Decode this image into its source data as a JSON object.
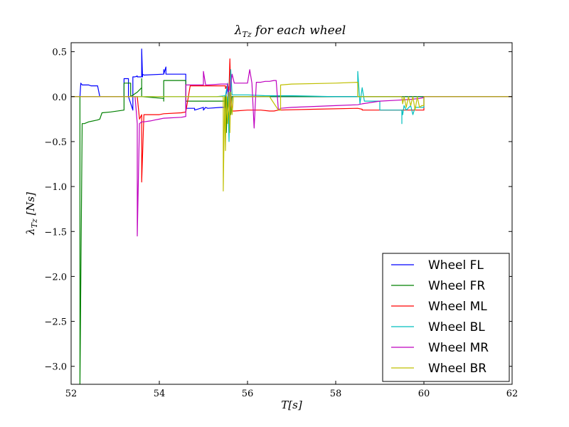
{
  "chart_data": {
    "type": "line",
    "title": "λ_Tz for each wheel",
    "xlabel": "T[s]",
    "ylabel": "λ_Tz [Ns]",
    "xlim": [
      52,
      62
    ],
    "ylim": [
      -3.2,
      0.6
    ],
    "xticks": [
      52,
      54,
      56,
      58,
      60,
      62
    ],
    "xtick_labels": [
      "52",
      "54",
      "56",
      "58",
      "60",
      "62"
    ],
    "yticks": [
      0.5,
      0.0,
      -0.5,
      -1.0,
      -1.5,
      -2.0,
      -2.5,
      -3.0
    ],
    "ytick_labels": [
      "0.5",
      "0.0",
      "−0.5",
      "−1.0",
      "−1.5",
      "−2.0",
      "−2.5",
      "−3.0"
    ],
    "grid": false,
    "legend_position": "lower-right",
    "series": [
      {
        "name": "Wheel FL",
        "color": "#0000ff",
        "x": [
          52.0,
          52.2,
          52.22,
          52.25,
          52.3,
          52.4,
          52.45,
          52.5,
          52.6,
          52.65,
          52.65,
          52.9,
          53.2,
          53.2,
          53.3,
          53.3,
          53.4,
          53.4,
          53.45,
          53.5,
          53.5,
          53.6,
          53.6,
          53.62,
          53.62,
          53.65,
          54.1,
          54.1,
          54.1,
          54.15,
          54.15,
          54.2,
          54.5,
          54.6,
          54.6,
          54.8,
          54.8,
          55.0,
          55.0,
          55.05,
          55.1,
          55.4,
          55.48,
          55.5,
          55.5,
          55.55,
          55.6,
          55.6,
          55.7,
          62.0
        ],
        "y": [
          0.0,
          0.0,
          0.15,
          0.13,
          0.13,
          0.13,
          0.12,
          0.12,
          0.12,
          0.0,
          0.0,
          0.0,
          0.0,
          0.2,
          0.2,
          0.0,
          -0.15,
          0.22,
          0.22,
          0.23,
          0.22,
          0.22,
          0.53,
          0.22,
          0.25,
          0.24,
          0.25,
          0.3,
          0.25,
          0.33,
          0.25,
          0.25,
          0.25,
          0.25,
          -0.13,
          -0.13,
          -0.15,
          -0.12,
          -0.15,
          -0.12,
          -0.13,
          -0.12,
          -0.12,
          -0.12,
          0.0,
          0.1,
          0.0,
          0.0,
          0.0,
          0.0
        ]
      },
      {
        "name": "Wheel FR",
        "color": "#008000",
        "x": [
          52.0,
          52.18,
          52.2,
          52.2,
          52.25,
          52.3,
          52.4,
          52.6,
          52.65,
          52.65,
          52.7,
          52.9,
          53.2,
          53.2,
          53.2,
          53.35,
          53.35,
          53.5,
          53.6,
          53.6,
          53.6,
          54.1,
          54.1,
          54.1,
          54.6,
          54.6,
          54.6,
          54.8,
          54.8,
          54.9,
          55.0,
          55.0,
          55.05,
          55.3,
          55.5,
          55.5,
          55.52,
          55.55,
          55.58,
          55.6,
          55.62,
          55.65,
          55.7,
          55.8,
          62.0
        ],
        "y": [
          0.0,
          0.0,
          0.0,
          -3.2,
          -0.3,
          -0.3,
          -0.28,
          -0.26,
          -0.25,
          -0.25,
          -0.18,
          -0.17,
          -0.15,
          0.15,
          0.15,
          0.15,
          0.0,
          0.05,
          0.1,
          0.2,
          0.0,
          -0.02,
          -0.05,
          0.18,
          0.18,
          0.18,
          -0.05,
          -0.05,
          -0.05,
          -0.05,
          -0.05,
          -0.05,
          -0.05,
          -0.05,
          -0.05,
          0.0,
          -0.4,
          0.0,
          -0.3,
          0.0,
          -0.2,
          0.0,
          0.0,
          0.0,
          0.0
        ]
      },
      {
        "name": "Wheel ML",
        "color": "#ff0000",
        "x": [
          52.0,
          53.5,
          53.55,
          53.6,
          53.6,
          53.65,
          54.0,
          54.1,
          54.1,
          54.5,
          54.6,
          54.6,
          54.7,
          54.75,
          55.4,
          55.5,
          55.5,
          55.55,
          55.58,
          55.6,
          55.62,
          55.65,
          55.7,
          56.0,
          56.3,
          56.5,
          56.6,
          56.7,
          57.5,
          58.5,
          58.6,
          58.6,
          59.5,
          59.9,
          60.0,
          60.0,
          62.0
        ],
        "y": [
          0.0,
          0.0,
          -0.25,
          -0.2,
          -0.95,
          -0.2,
          -0.2,
          -0.19,
          -0.19,
          -0.18,
          -0.17,
          -0.17,
          0.12,
          0.12,
          0.12,
          0.12,
          0.09,
          0.13,
          0.07,
          0.42,
          0.05,
          -0.16,
          -0.16,
          -0.15,
          -0.15,
          -0.16,
          -0.16,
          -0.15,
          -0.14,
          -0.13,
          -0.14,
          -0.15,
          -0.15,
          -0.15,
          -0.15,
          0.0,
          0.0
        ]
      },
      {
        "name": "Wheel BL",
        "color": "#00bfbf",
        "x": [
          52.0,
          55.3,
          55.3,
          55.5,
          55.55,
          55.58,
          55.6,
          55.62,
          55.65,
          56.0,
          56.4,
          56.6,
          57.0,
          58.0,
          58.5,
          58.5,
          58.55,
          58.6,
          58.65,
          58.7,
          58.75,
          58.9,
          59.0,
          59.0,
          59.1,
          59.3,
          59.5,
          59.5,
          59.5,
          59.52,
          59.55,
          59.6,
          59.7,
          59.75,
          59.8,
          59.9,
          60.0,
          60.0,
          62.0
        ],
        "y": [
          0.0,
          0.0,
          0.0,
          0.01,
          0.15,
          -0.5,
          0.02,
          0.3,
          0.02,
          0.02,
          0.01,
          0.01,
          0.01,
          0.0,
          0.0,
          0.28,
          -0.08,
          0.1,
          -0.05,
          -0.05,
          -0.05,
          -0.05,
          -0.05,
          -0.15,
          -0.15,
          -0.15,
          -0.15,
          -0.3,
          -0.15,
          -0.2,
          -0.1,
          -0.15,
          -0.1,
          -0.2,
          -0.12,
          -0.12,
          -0.12,
          0.0,
          0.0
        ]
      },
      {
        "name": "Wheel MR",
        "color": "#bf00bf",
        "x": [
          52.0,
          53.45,
          53.5,
          53.5,
          53.55,
          53.6,
          53.65,
          53.8,
          53.9,
          54.0,
          54.1,
          54.1,
          54.5,
          54.6,
          54.6,
          54.7,
          54.9,
          55.0,
          55.0,
          55.05,
          55.1,
          55.4,
          55.5,
          55.55,
          55.6,
          55.62,
          55.65,
          55.7,
          55.8,
          55.9,
          56.0,
          56.05,
          56.1,
          56.15,
          56.2,
          56.3,
          56.4,
          56.5,
          56.6,
          56.65,
          56.7,
          56.75,
          57.0,
          58.0,
          58.5,
          58.6,
          59.0,
          59.4,
          59.7,
          59.9,
          60.0,
          60.0,
          62.0
        ],
        "y": [
          0.0,
          0.0,
          -0.3,
          -1.55,
          -0.3,
          -0.28,
          -0.28,
          -0.27,
          -0.26,
          -0.25,
          -0.24,
          -0.24,
          -0.23,
          -0.22,
          0.13,
          0.13,
          0.13,
          0.13,
          0.28,
          0.13,
          0.13,
          0.14,
          0.14,
          0.14,
          -0.2,
          0.14,
          0.25,
          0.15,
          0.15,
          0.15,
          0.15,
          0.3,
          0.15,
          -0.35,
          0.16,
          0.16,
          0.17,
          0.17,
          0.18,
          0.18,
          -0.15,
          -0.13,
          -0.12,
          -0.1,
          -0.09,
          -0.08,
          -0.05,
          -0.04,
          -0.03,
          -0.02,
          -0.01,
          0.0,
          0.0
        ]
      },
      {
        "name": "Wheel BR",
        "color": "#bfbf00",
        "x": [
          52.0,
          55.4,
          55.45,
          55.45,
          55.48,
          55.5,
          55.52,
          55.55,
          55.58,
          55.6,
          55.62,
          55.65,
          55.68,
          55.7,
          55.75,
          55.8,
          55.85,
          56.0,
          56.5,
          56.7,
          56.75,
          56.75,
          57.0,
          58.0,
          58.5,
          58.5,
          58.5,
          59.5,
          59.52,
          59.55,
          59.6,
          59.65,
          59.7,
          59.75,
          59.8,
          59.85,
          59.9,
          59.95,
          60.0,
          60.0,
          62.0
        ],
        "y": [
          0.0,
          0.0,
          0.0,
          -1.05,
          0.0,
          -0.6,
          0.02,
          -0.3,
          0.05,
          -0.4,
          0.05,
          -0.2,
          0.0,
          0.0,
          0.0,
          0.0,
          0.0,
          0.0,
          0.0,
          -0.15,
          -0.15,
          0.13,
          0.14,
          0.15,
          0.16,
          0.16,
          0.0,
          0.0,
          -0.08,
          0.0,
          -0.12,
          0.0,
          -0.1,
          0.0,
          -0.15,
          0.0,
          -0.12,
          -0.1,
          -0.1,
          0.0,
          0.0
        ]
      }
    ]
  }
}
